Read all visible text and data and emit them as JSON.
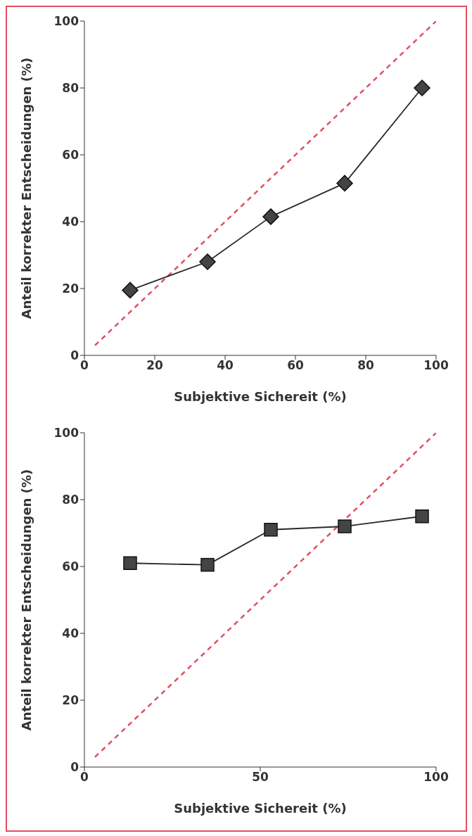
{
  "chart_data": [
    {
      "type": "line",
      "xlabel": "Subjektive Sichereit (%)",
      "ylabel": "Anteil korrekter Entscheidungen (%)",
      "xlim": [
        0,
        100
      ],
      "ylim": [
        0,
        100
      ],
      "xticks": [
        0,
        20,
        40,
        60,
        80,
        100
      ],
      "yticks": [
        0,
        20,
        40,
        60,
        80,
        100
      ],
      "series": [
        {
          "color": "#e0505f",
          "line_style": "dashed",
          "marker": "none",
          "x": [
            3,
            100
          ],
          "values": [
            3,
            100
          ]
        },
        {
          "color": "#2a2a2a",
          "line_style": "solid",
          "marker": "diamond",
          "x": [
            13,
            35,
            53,
            74,
            96
          ],
          "values": [
            19.5,
            28,
            41.5,
            51.5,
            80
          ]
        }
      ]
    },
    {
      "type": "line",
      "xlabel": "Subjektive Sichereit (%)",
      "ylabel": "Anteil korrekter Entscheidungen (%)",
      "xlim": [
        0,
        100
      ],
      "ylim": [
        0,
        100
      ],
      "xticks": [
        0,
        50,
        100
      ],
      "yticks": [
        0,
        20,
        40,
        60,
        80,
        100
      ],
      "series": [
        {
          "color": "#e0505f",
          "line_style": "dashed",
          "marker": "none",
          "x": [
            3,
            100
          ],
          "values": [
            3,
            100
          ]
        },
        {
          "color": "#2a2a2a",
          "line_style": "solid",
          "marker": "square",
          "x": [
            13,
            35,
            53,
            74,
            96
          ],
          "values": [
            61,
            60.5,
            71,
            72,
            75
          ]
        }
      ]
    }
  ]
}
